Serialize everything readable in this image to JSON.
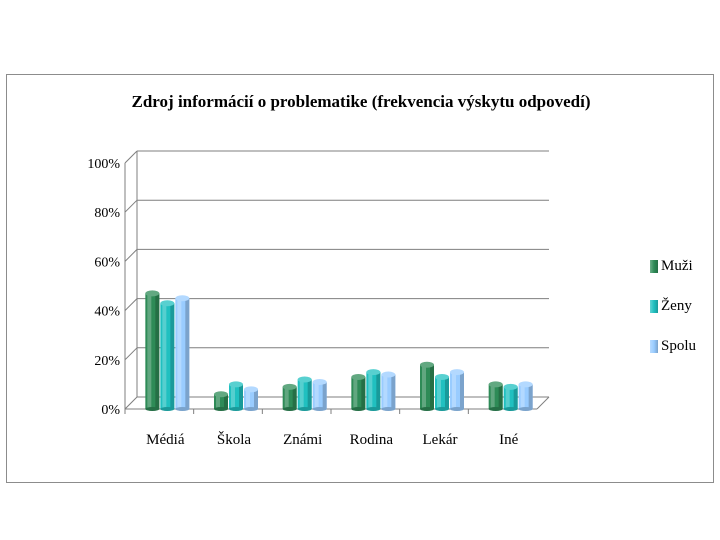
{
  "chart_data": {
    "type": "bar",
    "title": "Zdroj informácií o problematike (frekvencia výskytu odpovedí)",
    "categories": [
      "Médiá",
      "Škola",
      "Známi",
      "Rodina",
      "Lekár",
      "Iné"
    ],
    "series": [
      {
        "name": "Muži",
        "color": "#2e8b57",
        "values": [
          47,
          6,
          9,
          13,
          18,
          10
        ]
      },
      {
        "name": "Ženy",
        "color": "#20c0c0",
        "values": [
          43,
          10,
          12,
          15,
          13,
          9
        ]
      },
      {
        "name": "Spolu",
        "color": "#99ccff",
        "values": [
          45,
          8,
          11,
          14,
          15,
          10
        ]
      }
    ],
    "y_ticks": [
      "0%",
      "20%",
      "40%",
      "60%",
      "80%",
      "100%"
    ],
    "ylim": [
      0,
      100
    ],
    "grid": true,
    "legend": "right",
    "xlabel": "",
    "ylabel": ""
  }
}
